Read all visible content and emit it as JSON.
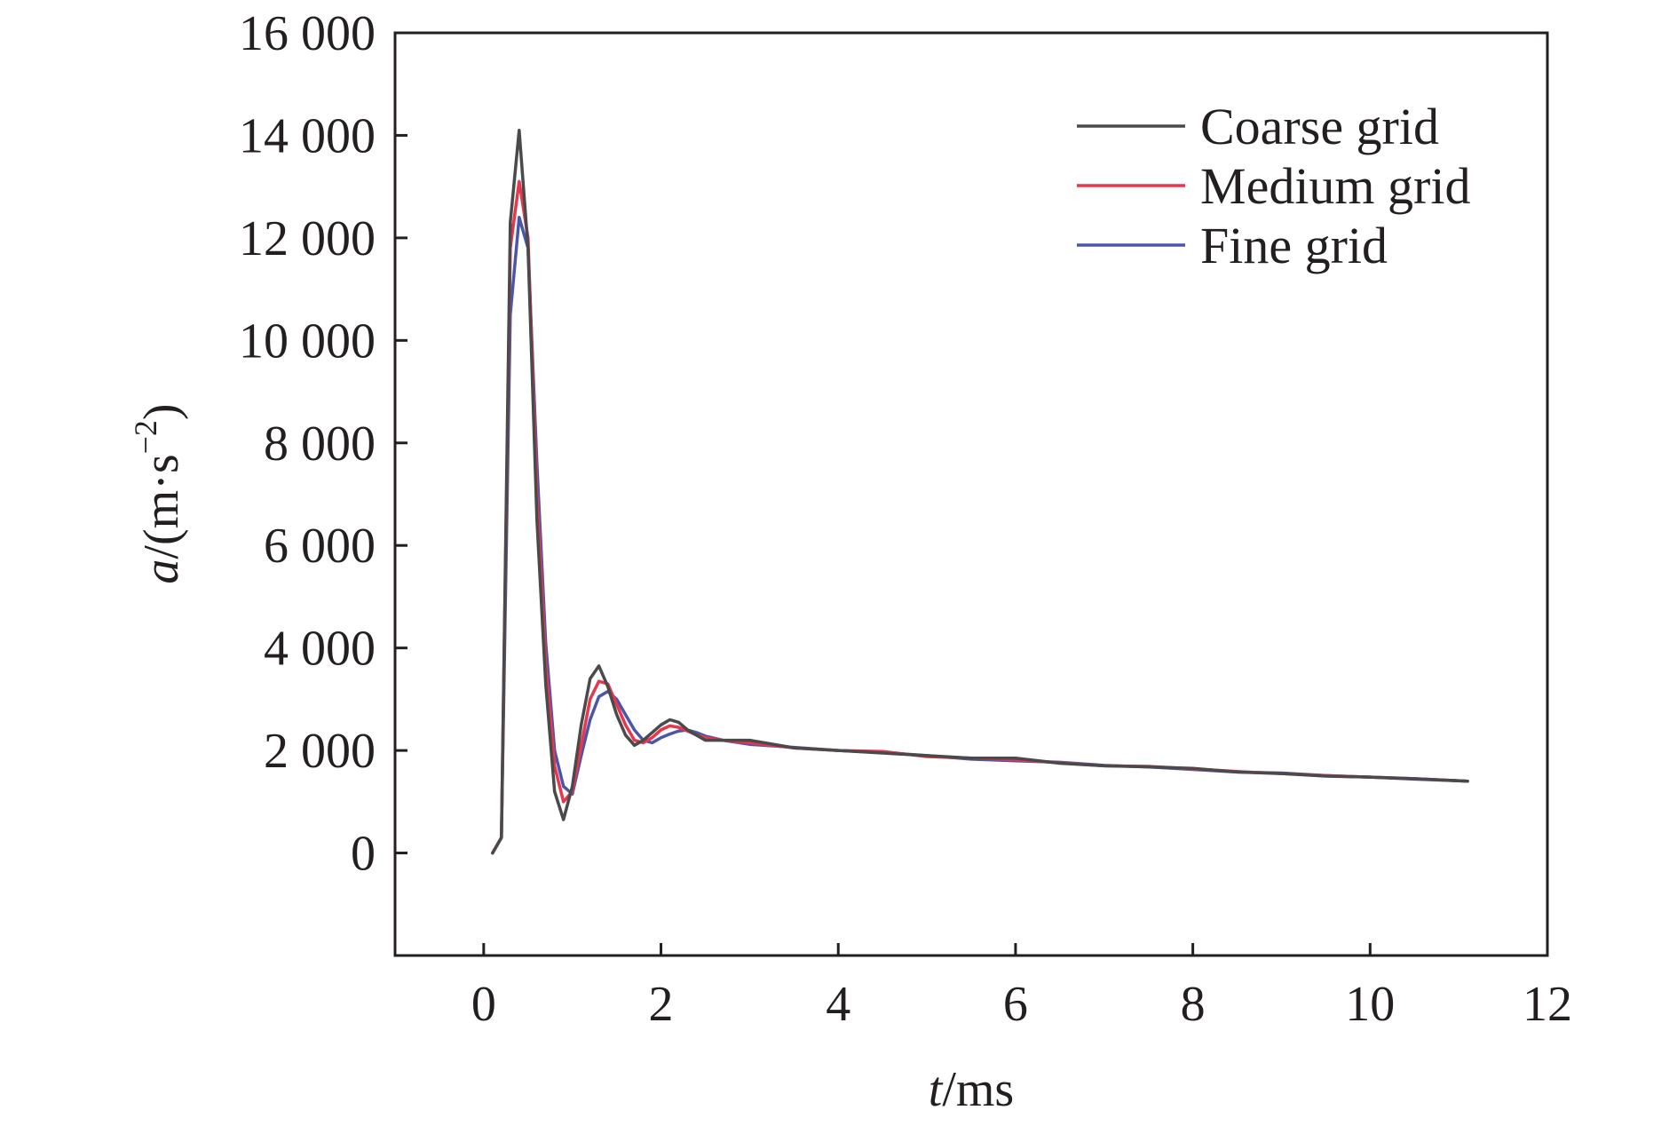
{
  "chart_data": {
    "type": "line",
    "title": "",
    "xlabel": {
      "var": "t",
      "unit": "/ms"
    },
    "ylabel": {
      "var": "a",
      "unit_pre": "/(m·s",
      "exp": "−2",
      "unit_post": ")"
    },
    "xlim": [
      -1,
      12
    ],
    "ylim": [
      -2000,
      16000
    ],
    "xticks": [
      0,
      2,
      4,
      6,
      8,
      10,
      12
    ],
    "xtick_labels": [
      "0",
      "2",
      "4",
      "6",
      "8",
      "10",
      "12"
    ],
    "yticks": [
      0,
      2000,
      4000,
      6000,
      8000,
      10000,
      12000,
      14000,
      16000
    ],
    "ytick_labels": [
      "0",
      "2 000",
      "4 000",
      "6 000",
      "8 000",
      "10 000",
      "12 000",
      "14 000",
      "16 000"
    ],
    "grid": false,
    "legend_position": "top-right",
    "series": [
      {
        "name": "Coarse grid",
        "color": "#4a4a4a",
        "x": [
          0.1,
          0.2,
          0.3,
          0.4,
          0.5,
          0.6,
          0.7,
          0.8,
          0.9,
          1.0,
          1.1,
          1.2,
          1.3,
          1.4,
          1.5,
          1.6,
          1.7,
          1.8,
          1.9,
          2.0,
          2.1,
          2.2,
          2.3,
          2.4,
          2.5,
          2.7,
          3.0,
          3.5,
          4.0,
          4.5,
          5.0,
          5.5,
          6.0,
          6.5,
          7.0,
          7.5,
          8.0,
          8.5,
          9.0,
          9.5,
          10.0,
          10.5,
          11.1
        ],
        "y": [
          0,
          300,
          12300,
          14100,
          11800,
          6500,
          3300,
          1200,
          650,
          1300,
          2500,
          3400,
          3650,
          3250,
          2700,
          2300,
          2100,
          2200,
          2350,
          2500,
          2600,
          2550,
          2400,
          2300,
          2200,
          2200,
          2200,
          2050,
          2000,
          1950,
          1900,
          1850,
          1850,
          1750,
          1700,
          1680,
          1650,
          1580,
          1550,
          1500,
          1480,
          1450,
          1400
        ]
      },
      {
        "name": "Medium grid",
        "color": "#e8364f",
        "x": [
          0.1,
          0.2,
          0.3,
          0.4,
          0.5,
          0.6,
          0.7,
          0.8,
          0.9,
          1.0,
          1.1,
          1.2,
          1.3,
          1.4,
          1.5,
          1.6,
          1.7,
          1.8,
          1.9,
          2.0,
          2.1,
          2.2,
          2.3,
          2.4,
          2.5,
          2.7,
          3.0,
          3.5,
          4.0,
          4.5,
          5.0,
          5.5,
          6.0,
          6.5,
          7.0,
          7.5,
          8.0,
          8.5,
          9.0,
          9.5,
          10.0,
          10.5,
          11.1
        ],
        "y": [
          0,
          300,
          11800,
          13100,
          12000,
          7000,
          3700,
          1700,
          1000,
          1200,
          2100,
          3000,
          3350,
          3300,
          2900,
          2500,
          2200,
          2150,
          2250,
          2400,
          2480,
          2450,
          2380,
          2300,
          2250,
          2200,
          2150,
          2050,
          2000,
          1980,
          1880,
          1850,
          1820,
          1760,
          1700,
          1690,
          1640,
          1590,
          1550,
          1510,
          1480,
          1450,
          1400
        ]
      },
      {
        "name": "Fine grid",
        "color": "#4a57a8",
        "x": [
          0.1,
          0.2,
          0.3,
          0.4,
          0.5,
          0.6,
          0.7,
          0.8,
          0.9,
          1.0,
          1.1,
          1.2,
          1.3,
          1.4,
          1.5,
          1.6,
          1.7,
          1.8,
          1.9,
          2.0,
          2.1,
          2.2,
          2.3,
          2.4,
          2.5,
          2.7,
          3.0,
          3.5,
          4.0,
          4.5,
          5.0,
          5.5,
          6.0,
          6.5,
          7.0,
          7.5,
          8.0,
          8.5,
          9.0,
          9.5,
          10.0,
          10.5,
          11.1
        ],
        "y": [
          0,
          300,
          10500,
          12400,
          11800,
          7600,
          4100,
          2000,
          1300,
          1150,
          1900,
          2600,
          3050,
          3150,
          3000,
          2700,
          2400,
          2200,
          2150,
          2250,
          2320,
          2380,
          2400,
          2350,
          2280,
          2200,
          2120,
          2060,
          2000,
          1960,
          1900,
          1830,
          1800,
          1770,
          1710,
          1680,
          1630,
          1580,
          1560,
          1510,
          1480,
          1440,
          1400
        ]
      }
    ]
  }
}
